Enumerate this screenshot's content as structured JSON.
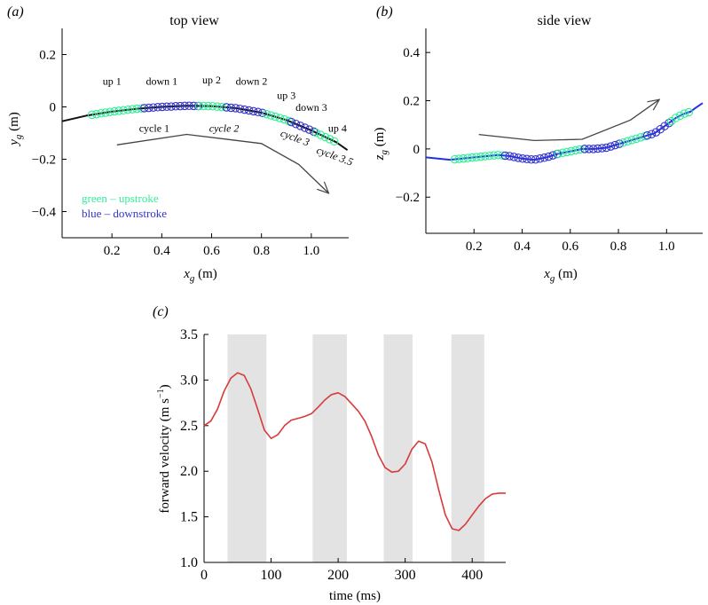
{
  "chart_data": [
    {
      "panel": "(a)",
      "type": "scatter",
      "title": "top view",
      "xlabel_var": "x",
      "xlabel_sub": "g",
      "xlabel_unit": " (m)",
      "ylabel_var": "y",
      "ylabel_sub": "g",
      "ylabel_unit": " (m)",
      "xlim": [
        0,
        1.15
      ],
      "ylim": [
        -0.5,
        0.3
      ],
      "xticks": [
        {
          "v": 0.2,
          "label": "0.2"
        },
        {
          "v": 0.4,
          "label": "0.4"
        },
        {
          "v": 0.6,
          "label": "0.6"
        },
        {
          "v": 0.8,
          "label": "0.8"
        },
        {
          "v": 1.0,
          "label": "1.0"
        }
      ],
      "yticks": [
        {
          "v": 0.2,
          "label": "0.2"
        },
        {
          "v": 0,
          "label": "0"
        },
        {
          "v": -0.2,
          "label": "−0.2"
        },
        {
          "v": -0.4,
          "label": "−0.4"
        }
      ],
      "path": [
        [
          0.0,
          -0.055
        ],
        [
          0.1,
          -0.033
        ],
        [
          0.2,
          -0.018
        ],
        [
          0.3,
          -0.007
        ],
        [
          0.4,
          0.0
        ],
        [
          0.5,
          0.004
        ],
        [
          0.6,
          0.003
        ],
        [
          0.7,
          -0.005
        ],
        [
          0.8,
          -0.022
        ],
        [
          0.9,
          -0.05
        ],
        [
          1.0,
          -0.09
        ],
        [
          1.1,
          -0.135
        ],
        [
          1.145,
          -0.165
        ]
      ],
      "stroke_segments": [
        {
          "kind": "up",
          "x0": 0.12,
          "x1": 0.33
        },
        {
          "kind": "down",
          "x0": 0.33,
          "x1": 0.55
        },
        {
          "kind": "up",
          "x0": 0.55,
          "x1": 0.66
        },
        {
          "kind": "down",
          "x0": 0.66,
          "x1": 0.82
        },
        {
          "kind": "up",
          "x0": 0.82,
          "x1": 0.92
        },
        {
          "kind": "down",
          "x0": 0.92,
          "x1": 1.02
        },
        {
          "kind": "up",
          "x0": 1.02,
          "x1": 1.1
        }
      ],
      "annotations": [
        {
          "text": "up 1",
          "x": 0.2,
          "y": 0.085
        },
        {
          "text": "down 1",
          "x": 0.4,
          "y": 0.085
        },
        {
          "text": "up 2",
          "x": 0.6,
          "y": 0.09
        },
        {
          "text": "down 2",
          "x": 0.76,
          "y": 0.085
        },
        {
          "text": "up 3",
          "x": 0.9,
          "y": 0.03
        },
        {
          "text": "down 3",
          "x": 1.0,
          "y": -0.015
        },
        {
          "text": "up 4",
          "x": 1.105,
          "y": -0.095
        },
        {
          "text": "cycle 1",
          "x": 0.37,
          "y": -0.095
        },
        {
          "text": "cycle 2",
          "x": 0.65,
          "y": -0.095,
          "italic": true
        },
        {
          "text": "cycle 3",
          "x": 0.93,
          "y": -0.13,
          "italic": true,
          "rotate": 20
        },
        {
          "text": "cycle 3.5",
          "x": 1.09,
          "y": -0.2,
          "italic": true,
          "rotate": 20
        }
      ],
      "arrow": [
        [
          0.22,
          -0.145
        ],
        [
          0.5,
          -0.105
        ],
        [
          0.8,
          -0.14
        ],
        [
          0.95,
          -0.22
        ],
        [
          1.07,
          -0.33
        ]
      ],
      "legend": [
        {
          "label": "green – upstroke",
          "color": "#33ee99"
        },
        {
          "label": "blue – downstroke",
          "color": "#3333cc"
        }
      ]
    },
    {
      "panel": "(b)",
      "type": "scatter",
      "title": "side view",
      "xlabel_var": "x",
      "xlabel_sub": "g",
      "xlabel_unit": " (m)",
      "ylabel_var": "z",
      "ylabel_sub": "g",
      "ylabel_unit": " (m)",
      "xlim": [
        0,
        1.15
      ],
      "ylim": [
        -0.35,
        0.5
      ],
      "xticks": [
        {
          "v": 0.2,
          "label": "0.2"
        },
        {
          "v": 0.4,
          "label": "0.4"
        },
        {
          "v": 0.6,
          "label": "0.6"
        },
        {
          "v": 0.8,
          "label": "0.8"
        },
        {
          "v": 1.0,
          "label": "1.0"
        }
      ],
      "yticks": [
        {
          "v": 0.4,
          "label": "0.4"
        },
        {
          "v": 0.2,
          "label": "0.2"
        },
        {
          "v": 0,
          "label": "0"
        },
        {
          "v": -0.2,
          "label": "−0.2"
        }
      ],
      "path": [
        [
          0.0,
          -0.035
        ],
        [
          0.05,
          -0.04
        ],
        [
          0.1,
          -0.045
        ],
        [
          0.15,
          -0.04
        ],
        [
          0.2,
          -0.035
        ],
        [
          0.3,
          -0.025
        ],
        [
          0.35,
          -0.03
        ],
        [
          0.4,
          -0.04
        ],
        [
          0.45,
          -0.045
        ],
        [
          0.5,
          -0.035
        ],
        [
          0.55,
          -0.02
        ],
        [
          0.6,
          -0.01
        ],
        [
          0.65,
          0.0
        ],
        [
          0.7,
          0.0
        ],
        [
          0.75,
          0.005
        ],
        [
          0.8,
          0.02
        ],
        [
          0.85,
          0.035
        ],
        [
          0.9,
          0.05
        ],
        [
          0.95,
          0.065
        ],
        [
          1.0,
          0.1
        ],
        [
          1.04,
          0.13
        ],
        [
          1.07,
          0.145
        ],
        [
          1.1,
          0.155
        ],
        [
          1.12,
          0.17
        ],
        [
          1.15,
          0.19
        ]
      ],
      "stroke_segments": [
        {
          "kind": "up",
          "x0": 0.12,
          "x1": 0.33
        },
        {
          "kind": "down",
          "x0": 0.33,
          "x1": 0.55
        },
        {
          "kind": "up",
          "x0": 0.55,
          "x1": 0.66
        },
        {
          "kind": "down",
          "x0": 0.66,
          "x1": 0.82
        },
        {
          "kind": "up",
          "x0": 0.82,
          "x1": 0.92
        },
        {
          "kind": "down",
          "x0": 0.92,
          "x1": 1.02
        },
        {
          "kind": "up",
          "x0": 1.02,
          "x1": 1.1
        }
      ],
      "arrow": [
        [
          0.22,
          0.06
        ],
        [
          0.45,
          0.035
        ],
        [
          0.65,
          0.04
        ],
        [
          0.85,
          0.12
        ],
        [
          0.97,
          0.205
        ]
      ]
    },
    {
      "panel": "(c)",
      "type": "line",
      "xlabel": "time (ms)",
      "ylabel": "forward velocity (m s",
      "ylabel_sup": "−1",
      "ylabel_close": ")",
      "xlim": [
        0,
        450
      ],
      "ylim": [
        1.0,
        3.5
      ],
      "xticks": [
        {
          "v": 0,
          "label": "0"
        },
        {
          "v": 100,
          "label": "100"
        },
        {
          "v": 200,
          "label": "200"
        },
        {
          "v": 300,
          "label": "300"
        },
        {
          "v": 400,
          "label": "400"
        }
      ],
      "yticks": [
        {
          "v": 1.0,
          "label": "1.0"
        },
        {
          "v": 1.5,
          "label": "1.5"
        },
        {
          "v": 2.0,
          "label": "2.0"
        },
        {
          "v": 2.5,
          "label": "2.5"
        },
        {
          "v": 3.0,
          "label": "3.0"
        },
        {
          "v": 3.5,
          "label": "3.5"
        }
      ],
      "shaded_intervals": [
        [
          35,
          93
        ],
        [
          162,
          213
        ],
        [
          268,
          311
        ],
        [
          369,
          418
        ]
      ],
      "series": [
        {
          "name": "forward velocity",
          "color": "#d93a3a",
          "x": [
            0,
            10,
            20,
            30,
            40,
            50,
            60,
            70,
            80,
            90,
            100,
            110,
            120,
            130,
            140,
            150,
            160,
            170,
            180,
            190,
            200,
            210,
            220,
            230,
            240,
            250,
            260,
            270,
            280,
            290,
            300,
            310,
            320,
            330,
            340,
            350,
            360,
            370,
            380,
            390,
            400,
            410,
            420,
            430,
            440,
            450
          ],
          "y": [
            2.5,
            2.55,
            2.68,
            2.88,
            3.02,
            3.08,
            3.05,
            2.9,
            2.68,
            2.45,
            2.36,
            2.4,
            2.5,
            2.56,
            2.58,
            2.6,
            2.63,
            2.7,
            2.78,
            2.84,
            2.86,
            2.82,
            2.74,
            2.66,
            2.55,
            2.38,
            2.18,
            2.04,
            1.99,
            2.0,
            2.08,
            2.24,
            2.33,
            2.3,
            2.1,
            1.8,
            1.52,
            1.37,
            1.35,
            1.42,
            1.52,
            1.62,
            1.7,
            1.75,
            1.76,
            1.76
          ]
        }
      ]
    }
  ]
}
